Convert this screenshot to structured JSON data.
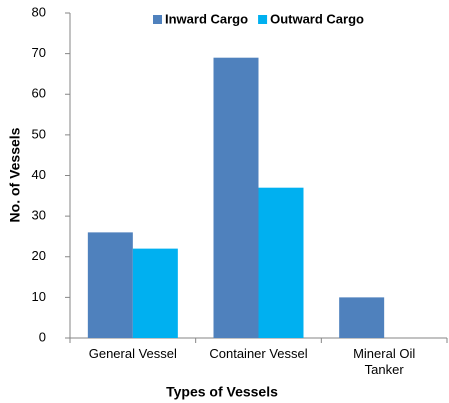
{
  "chart_data": {
    "type": "bar",
    "x_label": "Types of Vessels",
    "y_label": "No. of Vessels",
    "categories": [
      "General Vessel",
      "Container Vessel",
      "Mineral Oil Tanker"
    ],
    "series": [
      {
        "name": "Inward Cargo",
        "color": "#4f81bd",
        "values": [
          26,
          69,
          10
        ]
      },
      {
        "name": "Outward Cargo",
        "color": "#00b0f0",
        "values": [
          22,
          37,
          0
        ]
      }
    ],
    "ylim": [
      0,
      80
    ],
    "yticks": [
      0,
      10,
      20,
      30,
      40,
      50,
      60,
      70,
      80
    ],
    "grid": false,
    "legend": "top"
  }
}
